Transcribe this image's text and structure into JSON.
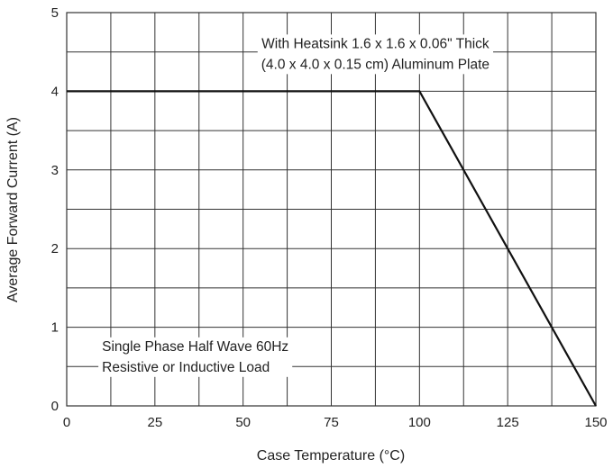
{
  "chart_data": {
    "type": "line",
    "title": "",
    "xlabel": "Case Temperature (°C)",
    "ylabel": "Average Forward Current (A)",
    "xlim": [
      0,
      150
    ],
    "ylim": [
      0,
      5
    ],
    "xticks": [
      0,
      25,
      50,
      75,
      100,
      125,
      150
    ],
    "yticks": [
      0,
      1,
      2,
      3,
      4,
      5
    ],
    "x_minor_step": 12.5,
    "y_minor_step": 0.5,
    "grid": true,
    "series": [
      {
        "x": [
          0,
          100,
          150
        ],
        "y": [
          4,
          4,
          0
        ]
      }
    ],
    "annotations": [
      {
        "lines": [
          "With Heatsink 1.6 x 1.6 x 0.06\" Thick",
          "(4.0 x 4.0 x 0.15 cm) Aluminum Plate"
        ],
        "x": 87.5,
        "y": 4.55,
        "align": "center"
      },
      {
        "lines": [
          "Single Phase Half Wave 60Hz",
          "Resistive or Inductive Load"
        ],
        "x": 10,
        "y": 0.7,
        "align": "left"
      }
    ],
    "colors": {
      "grid": "#333333",
      "line": "#111111",
      "text": "#222222",
      "background": "#ffffff"
    }
  }
}
